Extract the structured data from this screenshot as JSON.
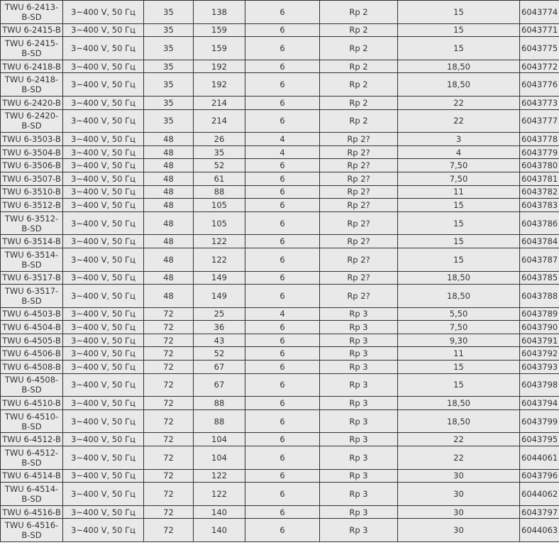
{
  "table": {
    "rows": [
      [
        "TWU 6-2413-B-SD",
        "3~400 V, 50 Гц",
        "35",
        "138",
        "6",
        "Rp 2",
        "15",
        "6043774"
      ],
      [
        "TWU 6-2415-B",
        "3~400 V, 50 Гц",
        "35",
        "159",
        "6",
        "Rp 2",
        "15",
        "6043771"
      ],
      [
        "TWU 6-2415-B-SD",
        "3~400 V, 50 Гц",
        "35",
        "159",
        "6",
        "Rp 2",
        "15",
        "6043775"
      ],
      [
        "TWU 6-2418-B",
        "3~400 V, 50 Гц",
        "35",
        "192",
        "6",
        "Rp 2",
        "18,50",
        "6043772"
      ],
      [
        "TWU 6-2418-B-SD",
        "3~400 V, 50 Гц",
        "35",
        "192",
        "6",
        "Rp 2",
        "18,50",
        "6043776"
      ],
      [
        "TWU 6-2420-B",
        "3~400 V, 50 Гц",
        "35",
        "214",
        "6",
        "Rp 2",
        "22",
        "6043773"
      ],
      [
        "TWU 6-2420-B-SD",
        "3~400 V, 50 Гц",
        "35",
        "214",
        "6",
        "Rp 2",
        "22",
        "6043777"
      ],
      [
        "TWU 6-3503-B",
        "3~400 V, 50 Гц",
        "48",
        "26",
        "4",
        "Rp 2?",
        "3",
        "6043778"
      ],
      [
        "TWU 6-3504-B",
        "3~400 V, 50 Гц",
        "48",
        "35",
        "4",
        "Rp 2?",
        "4",
        "6043779"
      ],
      [
        "TWU 6-3506-B",
        "3~400 V, 50 Гц",
        "48",
        "52",
        "6",
        "Rp 2?",
        "7,50",
        "6043780"
      ],
      [
        "TWU 6-3507-B",
        "3~400 V, 50 Гц",
        "48",
        "61",
        "6",
        "Rp 2?",
        "7,50",
        "6043781"
      ],
      [
        "TWU 6-3510-B",
        "3~400 V, 50 Гц",
        "48",
        "88",
        "6",
        "Rp 2?",
        "11",
        "6043782"
      ],
      [
        "TWU 6-3512-B",
        "3~400 V, 50 Гц",
        "48",
        "105",
        "6",
        "Rp 2?",
        "15",
        "6043783"
      ],
      [
        "TWU 6-3512-B-SD",
        "3~400 V, 50 Гц",
        "48",
        "105",
        "6",
        "Rp 2?",
        "15",
        "6043786"
      ],
      [
        "TWU 6-3514-B",
        "3~400 V, 50 Гц",
        "48",
        "122",
        "6",
        "Rp 2?",
        "15",
        "6043784"
      ],
      [
        "TWU 6-3514-B-SD",
        "3~400 V, 50 Гц",
        "48",
        "122",
        "6",
        "Rp 2?",
        "15",
        "6043787"
      ],
      [
        "TWU 6-3517-B",
        "3~400 V, 50 Гц",
        "48",
        "149",
        "6",
        "Rp 2?",
        "18,50",
        "6043785"
      ],
      [
        "TWU 6-3517-B-SD",
        "3~400 V, 50 Гц",
        "48",
        "149",
        "6",
        "Rp 2?",
        "18,50",
        "6043788"
      ],
      [
        "TWU 6-4503-B",
        "3~400 V, 50 Гц",
        "72",
        "25",
        "4",
        "Rp 3",
        "5,50",
        "6043789"
      ],
      [
        "TWU 6-4504-B",
        "3~400 V, 50 Гц",
        "72",
        "36",
        "6",
        "Rp 3",
        "7,50",
        "6043790"
      ],
      [
        "TWU 6-4505-B",
        "3~400 V, 50 Гц",
        "72",
        "43",
        "6",
        "Rp 3",
        "9,30",
        "6043791"
      ],
      [
        "TWU 6-4506-B",
        "3~400 V, 50 Гц",
        "72",
        "52",
        "6",
        "Rp 3",
        "11",
        "6043792"
      ],
      [
        "TWU 6-4508-B",
        "3~400 V, 50 Гц",
        "72",
        "67",
        "6",
        "Rp 3",
        "15",
        "6043793"
      ],
      [
        "TWU 6-4508-B-SD",
        "3~400 V, 50 Гц",
        "72",
        "67",
        "6",
        "Rp 3",
        "15",
        "6043798"
      ],
      [
        "TWU 6-4510-B",
        "3~400 V, 50 Гц",
        "72",
        "88",
        "6",
        "Rp 3",
        "18,50",
        "6043794"
      ],
      [
        "TWU 6-4510-B-SD",
        "3~400 V, 50 Гц",
        "72",
        "88",
        "6",
        "Rp 3",
        "18,50",
        "6043799"
      ],
      [
        "TWU 6-4512-B",
        "3~400 V, 50 Гц",
        "72",
        "104",
        "6",
        "Rp 3",
        "22",
        "6043795"
      ],
      [
        "TWU 6-4512-B-SD",
        "3~400 V, 50 Гц",
        "72",
        "104",
        "6",
        "Rp 3",
        "22",
        "6044061"
      ],
      [
        "TWU 6-4514-B",
        "3~400 V, 50 Гц",
        "72",
        "122",
        "6",
        "Rp 3",
        "30",
        "6043796"
      ],
      [
        "TWU 6-4514-B-SD",
        "3~400 V, 50 Гц",
        "72",
        "122",
        "6",
        "Rp 3",
        "30",
        "6044062"
      ],
      [
        "TWU 6-4516-B",
        "3~400 V, 50 Гц",
        "72",
        "140",
        "6",
        "Rp 3",
        "30",
        "6043797"
      ],
      [
        "TWU 6-4516-B-SD",
        "3~400 V, 50 Гц",
        "72",
        "140",
        "6",
        "Rp 3",
        "30",
        "6044063"
      ]
    ]
  }
}
